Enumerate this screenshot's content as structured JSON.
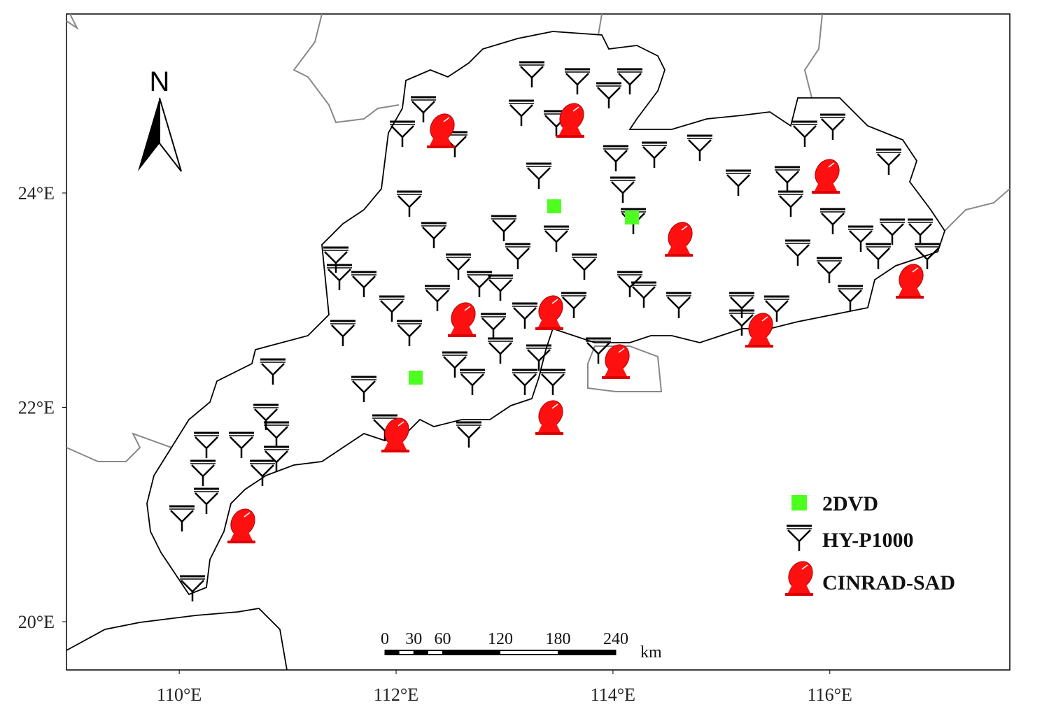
{
  "map": {
    "type": "map",
    "xlim": [
      108.96,
      117.66
    ],
    "ylim": [
      19.55,
      25.67
    ],
    "xticks": [
      {
        "value": 110,
        "label": "110°E"
      },
      {
        "value": 112,
        "label": "112°E"
      },
      {
        "value": 114,
        "label": "114°E"
      },
      {
        "value": 116,
        "label": "116°E"
      }
    ],
    "yticks": [
      {
        "value": 20,
        "label": "20°E"
      },
      {
        "value": 22,
        "label": "22°E"
      },
      {
        "value": 24,
        "label": "24°E"
      }
    ],
    "north_label": "N",
    "legend": [
      {
        "name": "2DVD",
        "color": "#4cff1f"
      },
      {
        "name": "HY-P1000",
        "color": "#000000"
      },
      {
        "name": "CINRAD-SAD",
        "color": "#ff0000"
      }
    ],
    "scale_bar": {
      "ticks": [
        0,
        30,
        60,
        120,
        180,
        240
      ],
      "unit": "km"
    }
  }
}
